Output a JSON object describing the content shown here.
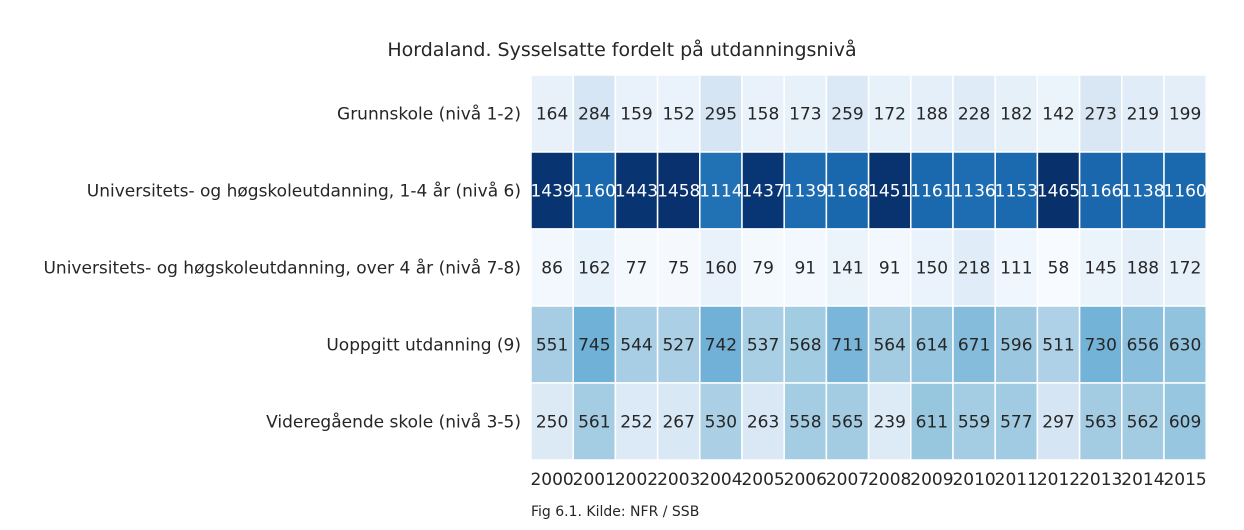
{
  "chart_data": {
    "type": "heatmap",
    "title": "Hordaland. Sysselsatte fordelt på utdanningsnivå",
    "caption": "Fig 6.1. Kilde: NFR / SSB",
    "x": [
      "2000",
      "2001",
      "2002",
      "2003",
      "2004",
      "2005",
      "2006",
      "2007",
      "2008",
      "2009",
      "2010",
      "2011",
      "2012",
      "2013",
      "2014",
      "2015"
    ],
    "y": [
      "Grunnskole (nivå 1-2)",
      "Universitets- og høgskoleutdanning, 1-4 år (nivå 6)",
      "Universitets- og høgskoleutdanning, over 4 år (nivå 7-8)",
      "Uoppgitt utdanning (9)",
      "Videregående skole (nivå 3-5)"
    ],
    "values": [
      [
        164,
        284,
        159,
        152,
        295,
        158,
        173,
        259,
        172,
        188,
        228,
        182,
        142,
        273,
        219,
        199
      ],
      [
        1439,
        1160,
        1443,
        1458,
        1114,
        1437,
        1139,
        1168,
        1451,
        1161,
        1136,
        1153,
        1465,
        1166,
        1138,
        1160
      ],
      [
        86,
        162,
        77,
        75,
        160,
        79,
        91,
        141,
        91,
        150,
        218,
        111,
        58,
        145,
        188,
        172
      ],
      [
        551,
        745,
        544,
        527,
        742,
        537,
        568,
        711,
        564,
        614,
        671,
        596,
        511,
        730,
        656,
        630
      ],
      [
        250,
        561,
        252,
        267,
        530,
        263,
        558,
        565,
        239,
        611,
        559,
        577,
        297,
        563,
        562,
        609
      ]
    ],
    "colormap": "Blues",
    "vmin": 58,
    "vmax": 1465,
    "colorbar": false
  }
}
